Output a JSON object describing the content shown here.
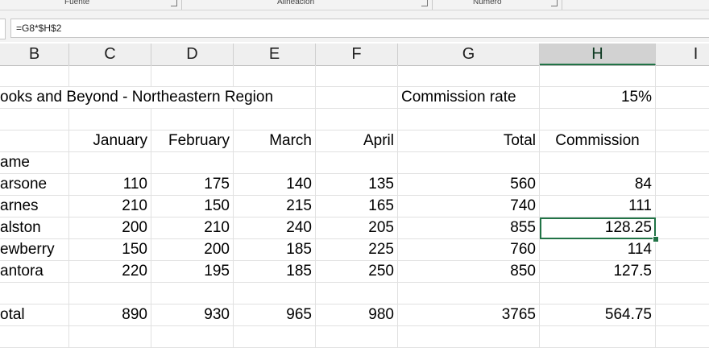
{
  "ribbon": {
    "groups": [
      {
        "label": "Fuente"
      },
      {
        "label": "Alineación"
      },
      {
        "label": "Número"
      }
    ]
  },
  "formula_bar": {
    "formula": "=G8*$H$2"
  },
  "columns": [
    {
      "letter": "B",
      "selected": false
    },
    {
      "letter": "C",
      "selected": false
    },
    {
      "letter": "D",
      "selected": false
    },
    {
      "letter": "E",
      "selected": false
    },
    {
      "letter": "F",
      "selected": false
    },
    {
      "letter": "G",
      "selected": false
    },
    {
      "letter": "H",
      "selected": true
    },
    {
      "letter": "I",
      "selected": false
    }
  ],
  "sheet": {
    "title": "ooks and Beyond - Northeastern Region",
    "commission_rate_label": "Commission rate",
    "commission_rate_value": "15%",
    "headers": {
      "january": "January",
      "february": "February",
      "march": "March",
      "april": "April",
      "total": "Total",
      "commission": "Commission"
    },
    "name_label": "ame",
    "rows": [
      {
        "name": "arsone",
        "jan": "110",
        "feb": "175",
        "mar": "140",
        "apr": "135",
        "total": "560",
        "commission": "84"
      },
      {
        "name": "arnes",
        "jan": "210",
        "feb": "150",
        "mar": "215",
        "apr": "165",
        "total": "740",
        "commission": "111"
      },
      {
        "name": "alston",
        "jan": "200",
        "feb": "210",
        "mar": "240",
        "apr": "205",
        "total": "855",
        "commission": "128.25"
      },
      {
        "name": "ewberry",
        "jan": "150",
        "feb": "200",
        "mar": "185",
        "apr": "225",
        "total": "760",
        "commission": "114"
      },
      {
        "name": "antora",
        "jan": "220",
        "feb": "195",
        "mar": "185",
        "apr": "250",
        "total": "850",
        "commission": "127.5"
      }
    ],
    "totals": {
      "label": "otal",
      "jan": "890",
      "feb": "930",
      "mar": "965",
      "apr": "980",
      "total": "3765",
      "commission": "564.75"
    }
  },
  "colors": {
    "accent": "#217346",
    "header_bg": "#efefef",
    "selected_header_bg": "#d2d2d2"
  }
}
